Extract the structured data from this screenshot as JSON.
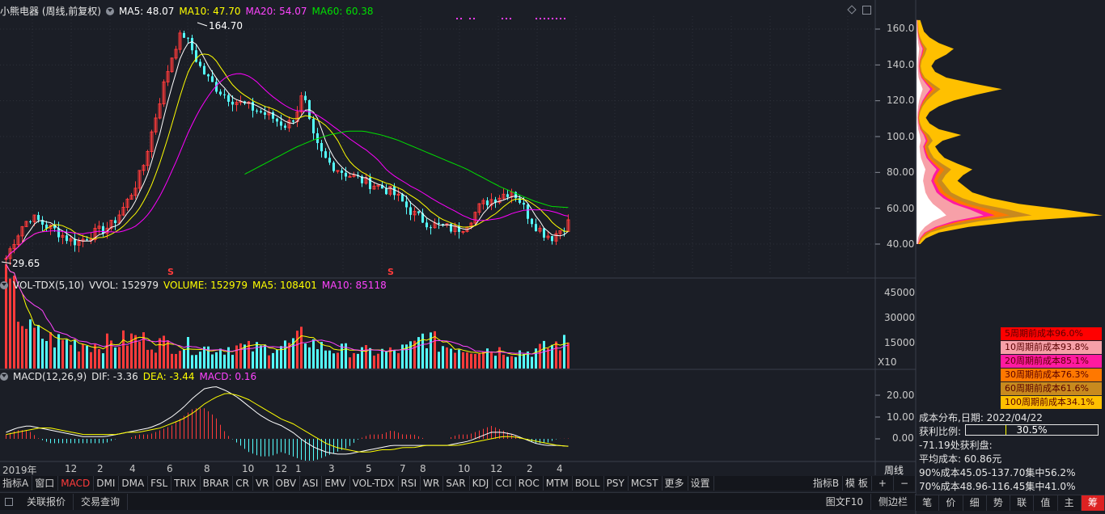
{
  "header": {
    "title": "小熊电器 (周线,前复权)",
    "ma5": "MA5: 48.07",
    "ma10": "MA10: 47.70",
    "ma20": "MA20: 54.07",
    "ma60": "MA60: 60.38"
  },
  "price": {
    "high_label": "164.70",
    "low_label": "29.65",
    "ticks": [
      "160.0",
      "140.0",
      "120.0",
      "100.0",
      "80.00",
      "60.00",
      "40.00"
    ],
    "marker": "S"
  },
  "volume": {
    "header": {
      "name": "VOL-TDX(5,10)",
      "vvol": "VVOL: 152979",
      "volume": "VOLUME: 152979",
      "ma5": "MA5: 108401",
      "ma10": "MA10: 85118"
    },
    "ticks": [
      "45000",
      "30000",
      "15000"
    ],
    "unit": "X10"
  },
  "macd": {
    "header": {
      "name": "MACD(12,26,9)",
      "dif": "DIF: -3.36",
      "dea": "DEA: -3.44",
      "macd": "MACD: 0.16"
    },
    "ticks": [
      "20.00",
      "10.00",
      "0.00"
    ]
  },
  "xaxis": {
    "labels": [
      "2019年",
      "12",
      "2",
      "4",
      "6",
      "8",
      "10",
      "12",
      "1",
      "3",
      "5",
      "7",
      "8",
      "10",
      "12",
      "2",
      "4"
    ],
    "period": "周线"
  },
  "indicator_tabs": [
    "指标A",
    "窗口",
    "MACD",
    "DMI",
    "DMA",
    "FSL",
    "TRIX",
    "BRAR",
    "CR",
    "VR",
    "OBV",
    "ASI",
    "EMV",
    "VOL-TDX",
    "RSI",
    "WR",
    "SAR",
    "KDJ",
    "CCI",
    "ROC",
    "MTM",
    "BOLL",
    "PSY",
    "MCST",
    "更多",
    "设置"
  ],
  "indicator_tabs_right": [
    "指标B",
    "模 板",
    "+",
    "−"
  ],
  "bottom_bar": {
    "left": [
      "关联报价",
      "交易查询"
    ],
    "right": [
      "图文F10",
      "侧边栏"
    ]
  },
  "cost_legend": [
    {
      "label": "5周期前成本96.0%",
      "bg": "#ff0000",
      "fg": "#5a0000"
    },
    {
      "label": "10周期前成本93.8%",
      "bg": "#f7a0a8",
      "fg": "#5a0000"
    },
    {
      "label": "20周期前成本85.1%",
      "bg": "#ff1aa0",
      "fg": "#5a0000"
    },
    {
      "label": "30周期前成本76.3%",
      "bg": "#ff7800",
      "fg": "#5a0000"
    },
    {
      "label": "60周期前成本61.6%",
      "bg": "#c88a1e",
      "fg": "#5a0000"
    },
    {
      "label": "100周期前成本34.1%",
      "bg": "#ffc000",
      "fg": "#5a0000"
    }
  ],
  "cost_info": {
    "date": "成本分布,日期: 2022/04/22",
    "profit_label": "获利比例:",
    "profit_value": "30.5%",
    "profit_fraction": 0.305,
    "profit_line": "-71.19处获利盘:",
    "avg_cost": "平均成本: 60.86元",
    "c90": "90%成本45.05-137.70集中56.2%",
    "c70": "70%成本48.96-116.45集中41.0%"
  },
  "right_tabs": [
    "笔",
    "价",
    "细",
    "势",
    "联",
    "值",
    "主",
    "筹"
  ],
  "colors": {
    "up": "#ff3b3b",
    "down": "#54ffff",
    "ma5": "#ffffff",
    "ma10": "#ffff00",
    "ma20": "#ff00ff",
    "ma60": "#00e000"
  },
  "chart_data": {
    "type": "candlestick",
    "title": "小熊电器 (周线,前复权)",
    "price_range": [
      29.65,
      164.7
    ],
    "price_path": [
      32,
      42,
      50,
      55,
      53,
      50,
      48,
      45,
      42,
      41,
      44,
      46,
      48,
      50,
      56,
      63,
      72,
      82,
      100,
      118,
      135,
      150,
      158,
      150,
      140,
      133,
      128,
      124,
      121,
      119,
      117,
      115,
      113,
      111,
      108,
      106,
      112,
      124,
      102,
      92,
      86,
      83,
      80,
      78,
      76,
      74,
      73,
      71,
      69,
      65,
      60,
      56,
      53,
      51,
      50,
      49,
      48,
      50,
      55,
      61,
      64,
      66,
      68,
      70,
      64,
      56,
      50,
      46,
      44,
      48,
      52
    ],
    "ma60_path": [
      79,
      84,
      89,
      94,
      98,
      101,
      103,
      103,
      101,
      98,
      94,
      90,
      86,
      82,
      77,
      72,
      68,
      64,
      61,
      60.4
    ],
    "volume_path": [
      45,
      41,
      30,
      22,
      20,
      18,
      17,
      16,
      16,
      15,
      15,
      14,
      15,
      15,
      16,
      17,
      18,
      17,
      16,
      15,
      15,
      14,
      14,
      13,
      13,
      12,
      12,
      12,
      13,
      13,
      12,
      12,
      12,
      13,
      13,
      14,
      15,
      20,
      16,
      13,
      12,
      11,
      11,
      11,
      10,
      10,
      10,
      10,
      10,
      11,
      12,
      14,
      20,
      17,
      14,
      13,
      13,
      12,
      12,
      12,
      12,
      11,
      11,
      10,
      10,
      10,
      11,
      12,
      14,
      15,
      15
    ],
    "volume_range": [
      0,
      45000
    ],
    "dif_path": [
      3,
      5,
      6,
      5,
      4,
      3,
      2,
      1,
      1,
      1,
      2,
      3,
      4,
      5,
      7,
      10,
      14,
      19,
      23,
      24,
      22,
      19,
      15,
      11,
      8,
      6,
      3,
      -1,
      -4,
      -6,
      -7,
      -7,
      -6,
      -5,
      -4,
      -3,
      -3,
      -3,
      -3,
      -3,
      -3,
      -2,
      -1,
      1,
      3,
      3,
      2,
      0,
      -2,
      -3,
      -3,
      -3.36
    ],
    "dea_path": [
      2,
      3,
      4,
      5,
      5,
      4,
      3,
      2,
      2,
      2,
      2,
      3,
      3,
      4,
      5,
      7,
      9,
      12,
      16,
      19,
      21,
      20,
      18,
      15,
      12,
      9,
      7,
      4,
      1,
      -2,
      -4,
      -5,
      -6,
      -6,
      -5,
      -5,
      -4,
      -4,
      -3,
      -3,
      -3,
      -3,
      -2,
      -1,
      0,
      1,
      1,
      0,
      -1,
      -2,
      -3,
      -3.44
    ],
    "macd_range": [
      -12,
      26
    ],
    "cost_profile": {
      "price_range": [
        40,
        165
      ],
      "values": [
        0.02,
        0.05,
        0.12,
        0.28,
        0.55,
        1.0,
        0.8,
        0.55,
        0.4,
        0.3,
        0.26,
        0.22,
        0.25,
        0.3,
        0.22,
        0.15,
        0.12,
        0.1,
        0.14,
        0.24,
        0.12,
        0.07,
        0.05,
        0.07,
        0.12,
        0.2,
        0.32,
        0.46,
        0.3,
        0.16,
        0.1,
        0.08,
        0.1,
        0.16,
        0.2,
        0.12,
        0.07,
        0.04,
        0.03,
        0.02
      ]
    }
  }
}
